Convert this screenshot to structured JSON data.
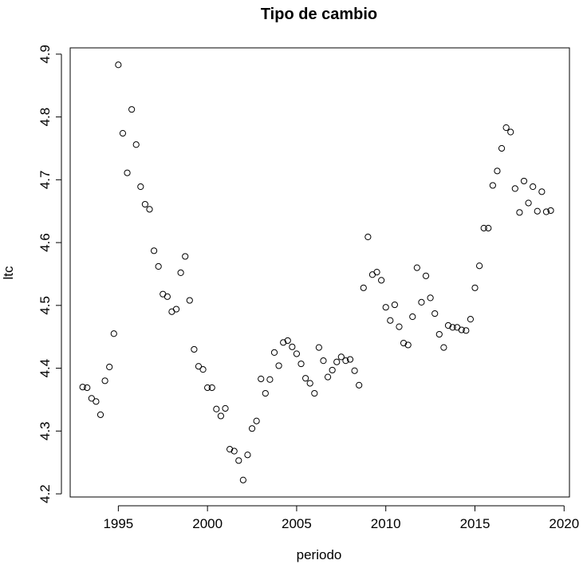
{
  "chart_data": {
    "type": "scatter",
    "title": "Tipo de cambio",
    "xlabel": "periodo",
    "ylabel": "ltc",
    "xlim": [
      1992.3,
      2020.3
    ],
    "ylim": [
      4.195,
      4.91
    ],
    "xticks": [
      1995,
      2000,
      2005,
      2010,
      2015,
      2020
    ],
    "yticks": [
      4.2,
      4.3,
      4.4,
      4.5,
      4.6,
      4.7,
      4.8,
      4.9
    ],
    "grid": false,
    "marker": "open-circle",
    "x": [
      1993.0,
      1993.25,
      1993.5,
      1993.75,
      1994.0,
      1994.25,
      1994.5,
      1994.75,
      1995.0,
      1995.25,
      1995.5,
      1995.75,
      1996.0,
      1996.25,
      1996.5,
      1996.75,
      1997.0,
      1997.25,
      1997.5,
      1997.75,
      1998.0,
      1998.25,
      1998.5,
      1998.75,
      1999.0,
      1999.25,
      1999.5,
      1999.75,
      2000.0,
      2000.25,
      2000.5,
      2000.75,
      2001.0,
      2001.25,
      2001.5,
      2001.75,
      2002.0,
      2002.25,
      2002.5,
      2002.75,
      2003.0,
      2003.25,
      2003.5,
      2003.75,
      2004.0,
      2004.25,
      2004.5,
      2004.75,
      2005.0,
      2005.25,
      2005.5,
      2005.75,
      2006.0,
      2006.25,
      2006.5,
      2006.75,
      2007.0,
      2007.25,
      2007.5,
      2007.75,
      2008.0,
      2008.25,
      2008.5,
      2008.75,
      2009.0,
      2009.25,
      2009.5,
      2009.75,
      2010.0,
      2010.25,
      2010.5,
      2010.75,
      2011.0,
      2011.25,
      2011.5,
      2011.75,
      2012.0,
      2012.25,
      2012.5,
      2012.75,
      2013.0,
      2013.25,
      2013.5,
      2013.75,
      2014.0,
      2014.25,
      2014.5,
      2014.75,
      2015.0,
      2015.25,
      2015.5,
      2015.75,
      2016.0,
      2016.25,
      2016.5,
      2016.75,
      2017.0,
      2017.25,
      2017.5,
      2017.75,
      2018.0,
      2018.25,
      2018.5,
      2018.75,
      2019.0,
      2019.25
    ],
    "y": [
      4.37,
      4.369,
      4.352,
      4.347,
      4.326,
      4.38,
      4.402,
      4.455,
      4.883,
      4.774,
      4.711,
      4.812,
      4.756,
      4.689,
      4.661,
      4.653,
      4.587,
      4.562,
      4.518,
      4.514,
      4.49,
      4.494,
      4.552,
      4.578,
      4.508,
      4.43,
      4.403,
      4.398,
      4.369,
      4.369,
      4.335,
      4.324,
      4.336,
      4.271,
      4.268,
      4.253,
      4.222,
      4.262,
      4.304,
      4.316,
      4.383,
      4.36,
      4.382,
      4.425,
      4.404,
      4.441,
      4.444,
      4.434,
      4.423,
      4.407,
      4.384,
      4.376,
      4.36,
      4.433,
      4.412,
      4.386,
      4.397,
      4.41,
      4.418,
      4.412,
      4.414,
      4.396,
      4.373,
      4.528,
      4.609,
      4.549,
      4.553,
      4.54,
      4.497,
      4.476,
      4.501,
      4.466,
      4.44,
      4.437,
      4.482,
      4.56,
      4.505,
      4.547,
      4.512,
      4.487,
      4.454,
      4.433,
      4.468,
      4.465,
      4.465,
      4.461,
      4.46,
      4.478,
      4.528,
      4.563,
      4.623,
      4.623,
      4.691,
      4.714,
      4.75,
      4.783,
      4.776,
      4.686,
      4.648,
      4.698,
      4.663,
      4.689,
      4.65,
      4.681,
      4.649,
      4.651
    ]
  }
}
